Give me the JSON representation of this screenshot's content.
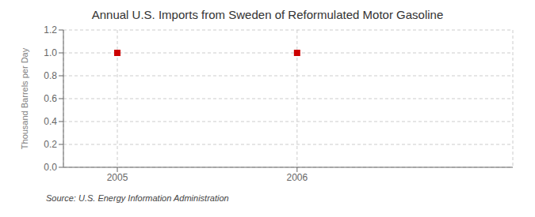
{
  "chart_data": {
    "type": "scatter",
    "title": "Annual U.S. Imports from Sweden of Reformulated Motor Gasoline",
    "ylabel": "Thousand Barrels per Day",
    "source": "Source: U.S. Energy Information Administration",
    "x": [
      2005,
      2006
    ],
    "values": [
      1.0,
      1.0
    ],
    "color": "#cc0000",
    "marker": "square",
    "xlim": [
      2004.7,
      2007.2
    ],
    "xticks": [
      2005,
      2006
    ],
    "ylim": [
      0.0,
      1.2
    ],
    "yticks": [
      {
        "value": 0.0,
        "label": "0.0"
      },
      0.2,
      0.4,
      0.6,
      0.8,
      {
        "value": 1.0,
        "label": "1.0"
      },
      1.2
    ],
    "grid": true
  }
}
